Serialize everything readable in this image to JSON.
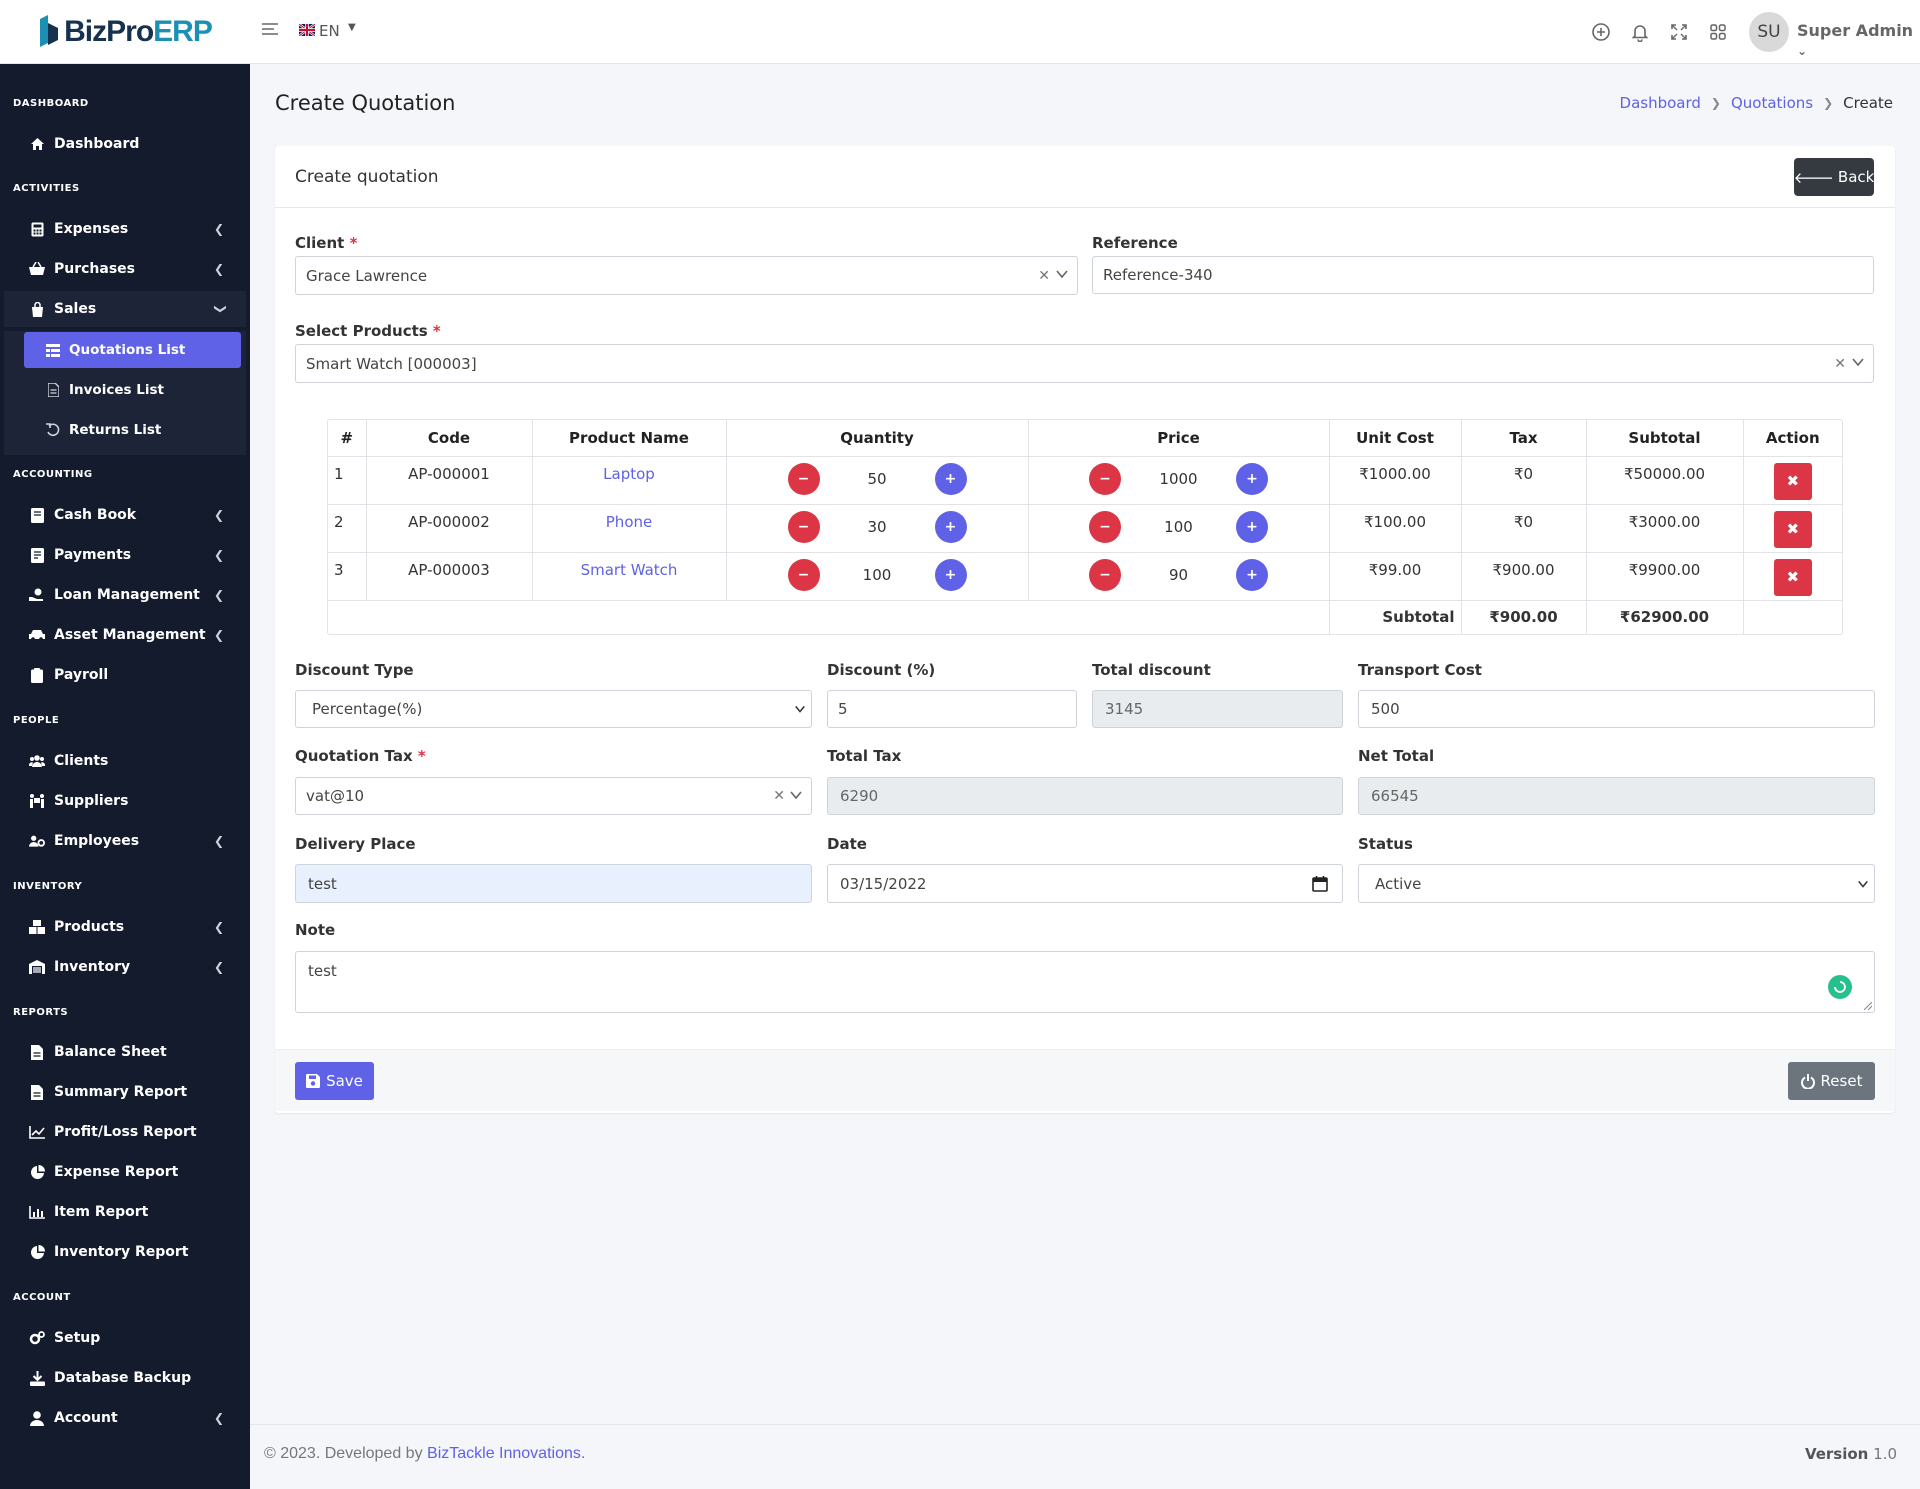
{
  "brand": {
    "name_part1": "BizPro",
    "name_part2": "ERP"
  },
  "topbar": {
    "language": "EN",
    "avatar_initials": "SU",
    "user_name": "Super Admin"
  },
  "sidebar": {
    "sections": [
      "DASHBOARD",
      "ACTIVITIES",
      "ACCOUNTING",
      "PEOPLE",
      "INVENTORY",
      "REPORTS",
      "ACCOUNT"
    ],
    "items": {
      "dashboard": "Dashboard",
      "expenses": "Expenses",
      "purchases": "Purchases",
      "sales": "Sales",
      "quotations": "Quotations List",
      "invoices": "Invoices List",
      "returns": "Returns List",
      "cashbook": "Cash Book",
      "payments": "Payments",
      "loan": "Loan Management",
      "asset": "Asset Management",
      "payroll": "Payroll",
      "clients": "Clients",
      "suppliers": "Suppliers",
      "employees": "Employees",
      "products": "Products",
      "inventory": "Inventory",
      "balance": "Balance Sheet",
      "summary": "Summary Report",
      "profitloss": "Profit/Loss Report",
      "expense_report": "Expense Report",
      "item_report": "Item Report",
      "inventory_report": "Inventory Report",
      "setup": "Setup",
      "backup": "Database Backup",
      "account": "Account"
    }
  },
  "page": {
    "title": "Create Quotation",
    "breadcrumb": [
      "Dashboard",
      "Quotations",
      "Create"
    ]
  },
  "card": {
    "title": "Create quotation",
    "back_label": "Back"
  },
  "form": {
    "client_label": "Client",
    "client_value": "Grace Lawrence",
    "reference_label": "Reference",
    "reference_value": "Reference-340",
    "products_label": "Select Products",
    "products_value": "Smart Watch [000003]",
    "discount_type_label": "Discount Type",
    "discount_type_value": "Percentage(%)",
    "discount_label": "Discount (%)",
    "discount_value": "5",
    "total_discount_label": "Total discount",
    "total_discount_value": "3145",
    "transport_label": "Transport Cost",
    "transport_value": "500",
    "tax_label": "Quotation Tax",
    "tax_value": "vat@10",
    "total_tax_label": "Total Tax",
    "total_tax_value": "6290",
    "net_total_label": "Net Total",
    "net_total_value": "66545",
    "delivery_label": "Delivery Place",
    "delivery_value": "test",
    "date_label": "Date",
    "date_value": "03/15/2022",
    "status_label": "Status",
    "status_value": "Active",
    "note_label": "Note",
    "note_value": "test",
    "save_label": "Save",
    "reset_label": "Reset"
  },
  "table": {
    "headers": [
      "#",
      "Code",
      "Product Name",
      "Quantity",
      "Price",
      "Unit Cost",
      "Tax",
      "Subtotal",
      "Action"
    ],
    "rows": [
      {
        "n": "1",
        "code": "AP-000001",
        "name": "Laptop",
        "qty": "50",
        "price": "1000",
        "unit_cost": "₹1000.00",
        "tax": "₹0",
        "subtotal": "₹50000.00"
      },
      {
        "n": "2",
        "code": "AP-000002",
        "name": "Phone",
        "qty": "30",
        "price": "100",
        "unit_cost": "₹100.00",
        "tax": "₹0",
        "subtotal": "₹3000.00"
      },
      {
        "n": "3",
        "code": "AP-000003",
        "name": "Smart Watch",
        "qty": "100",
        "price": "90",
        "unit_cost": "₹99.00",
        "tax": "₹900.00",
        "subtotal": "₹9900.00"
      }
    ],
    "footer_label": "Subtotal",
    "footer_tax": "₹900.00",
    "footer_subtotal": "₹62900.00"
  },
  "footer": {
    "copyright": "© 2023. Developed by",
    "company": "BizTackle Innovations.",
    "version_label": "Version",
    "version": "1.0"
  },
  "colors": {
    "primary": "#5f61e6",
    "danger": "#dc3545",
    "sidebar": "#141b2d"
  }
}
